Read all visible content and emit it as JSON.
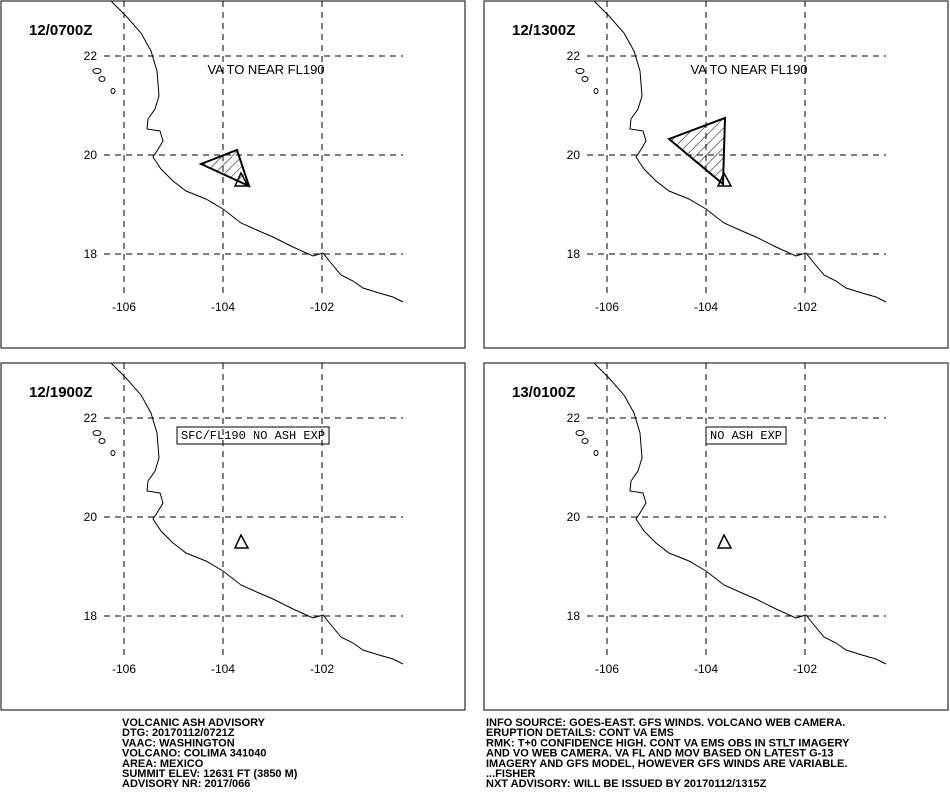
{
  "grid": {
    "lat_labels": [
      "22",
      "20",
      "18"
    ],
    "lon_labels": [
      "-106",
      "-104",
      "-102"
    ]
  },
  "panels": [
    {
      "time": "12/0700Z",
      "annotation": "VA TO NEAR FL190"
    },
    {
      "time": "12/1300Z",
      "annotation": "VA TO NEAR FL190"
    },
    {
      "time": "12/1900Z",
      "annotation": "SFC/FL190 NO ASH EXP"
    },
    {
      "time": "13/0100Z",
      "annotation": "NO ASH EXP"
    }
  ],
  "advisory_left": [
    "VOLCANIC ASH ADVISORY",
    "DTG: 20170112/0721Z",
    "VAAC: WASHINGTON",
    "VOLCANO: COLIMA 341040",
    "AREA: MEXICO",
    "SUMMIT ELEV: 12631 FT (3850 M)",
    "ADVISORY NR: 2017/066"
  ],
  "advisory_right": [
    "INFO SOURCE: GOES-EAST. GFS WINDS. VOLCANO WEB CAMERA.",
    "ERUPTION DETAILS: CONT VA EMS",
    "RMK: T+0 CONFIDENCE HIGH. CONT VA EMS OBS IN STLT IMAGERY",
    "AND VO WEB CAMERA. VA FL AND MOV BASED ON LATEST G-13",
    "IMAGERY AND GFS MODEL, HOWEVER GFS WINDS ARE VARIABLE.",
    "...FISHER",
    "NXT ADVISORY: WILL BE ISSUED BY 20170112/1315Z"
  ]
}
